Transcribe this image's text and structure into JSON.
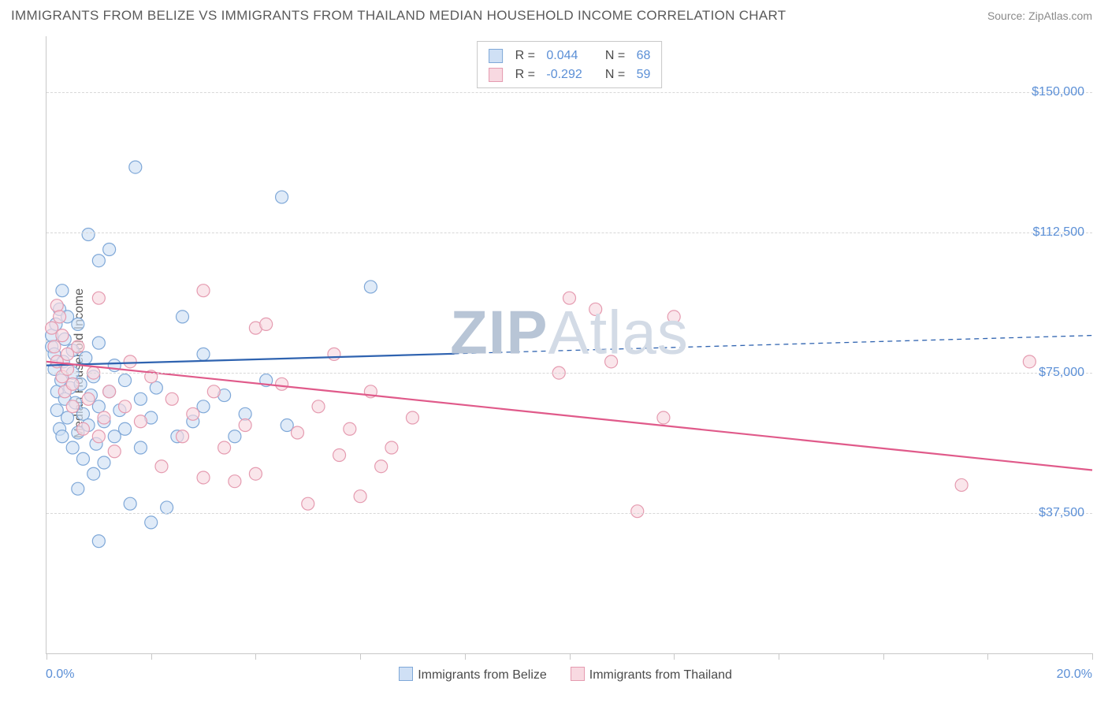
{
  "title": "IMMIGRANTS FROM BELIZE VS IMMIGRANTS FROM THAILAND MEDIAN HOUSEHOLD INCOME CORRELATION CHART",
  "source": "Source: ZipAtlas.com",
  "y_axis_label": "Median Household Income",
  "watermark": {
    "text_bold": "ZIP",
    "text_light": "Atlas",
    "color_bold": "#b8c5d6",
    "color_light": "#d3dbe6"
  },
  "chart": {
    "type": "scatter",
    "xlim": [
      0,
      20
    ],
    "ylim": [
      0,
      165000
    ],
    "x_tick_positions": [
      0,
      2,
      4,
      6,
      8,
      10,
      12,
      14,
      16,
      18,
      20
    ],
    "x_tick_labels": {
      "min": "0.0%",
      "max": "20.0%"
    },
    "y_ticks": [
      {
        "value": 37500,
        "label": "$37,500"
      },
      {
        "value": 75000,
        "label": "$75,000"
      },
      {
        "value": 112500,
        "label": "$112,500"
      },
      {
        "value": 150000,
        "label": "$150,000"
      }
    ],
    "grid_color": "#d8d8d8",
    "axis_color": "#c8c8c8",
    "background": "#ffffff",
    "marker_radius": 8,
    "marker_stroke_width": 1.2,
    "line_width": 2.2,
    "dash_pattern": "6 5",
    "series": [
      {
        "id": "belize",
        "label": "Immigrants from Belize",
        "fill_color": "#cfe0f5",
        "stroke_color": "#7fa8d8",
        "line_color": "#2f63b0",
        "r_value": "0.044",
        "n_value": "68",
        "trend": {
          "x1": 0,
          "y1": 77000,
          "x2": 20,
          "y2": 85000,
          "solid_until_x": 7.8
        },
        "points": [
          [
            0.1,
            82000
          ],
          [
            0.1,
            85000
          ],
          [
            0.15,
            80000
          ],
          [
            0.15,
            76000
          ],
          [
            0.18,
            88000
          ],
          [
            0.2,
            65000
          ],
          [
            0.2,
            70000
          ],
          [
            0.25,
            60000
          ],
          [
            0.25,
            92000
          ],
          [
            0.28,
            73000
          ],
          [
            0.3,
            97000
          ],
          [
            0.3,
            58000
          ],
          [
            0.32,
            78000
          ],
          [
            0.35,
            84000
          ],
          [
            0.35,
            68000
          ],
          [
            0.4,
            63000
          ],
          [
            0.4,
            90000
          ],
          [
            0.45,
            71000
          ],
          [
            0.5,
            55000
          ],
          [
            0.5,
            81000
          ],
          [
            0.5,
            75000
          ],
          [
            0.55,
            67000
          ],
          [
            0.6,
            59000
          ],
          [
            0.6,
            88000
          ],
          [
            0.65,
            72000
          ],
          [
            0.7,
            64000
          ],
          [
            0.7,
            52000
          ],
          [
            0.75,
            79000
          ],
          [
            0.8,
            61000
          ],
          [
            0.8,
            112000
          ],
          [
            0.85,
            69000
          ],
          [
            0.9,
            48000
          ],
          [
            0.9,
            74000
          ],
          [
            0.95,
            56000
          ],
          [
            1.0,
            83000
          ],
          [
            1.0,
            66000
          ],
          [
            1.0,
            105000
          ],
          [
            1.1,
            62000
          ],
          [
            1.1,
            51000
          ],
          [
            1.2,
            70000
          ],
          [
            1.2,
            108000
          ],
          [
            1.3,
            58000
          ],
          [
            1.3,
            77000
          ],
          [
            1.4,
            65000
          ],
          [
            1.5,
            60000
          ],
          [
            1.5,
            73000
          ],
          [
            1.6,
            40000
          ],
          [
            1.7,
            130000
          ],
          [
            1.8,
            55000
          ],
          [
            1.8,
            68000
          ],
          [
            2.0,
            63000
          ],
          [
            2.0,
            35000
          ],
          [
            2.1,
            71000
          ],
          [
            2.3,
            39000
          ],
          [
            2.5,
            58000
          ],
          [
            2.6,
            90000
          ],
          [
            2.8,
            62000
          ],
          [
            3.0,
            66000
          ],
          [
            3.0,
            80000
          ],
          [
            3.4,
            69000
          ],
          [
            3.6,
            58000
          ],
          [
            3.8,
            64000
          ],
          [
            4.2,
            73000
          ],
          [
            4.5,
            122000
          ],
          [
            4.6,
            61000
          ],
          [
            6.2,
            98000
          ],
          [
            1.0,
            30000
          ],
          [
            0.6,
            44000
          ]
        ]
      },
      {
        "id": "thailand",
        "label": "Immigrants from Thailand",
        "fill_color": "#f8d9e1",
        "stroke_color": "#e59bb0",
        "line_color": "#e05a8a",
        "r_value": "-0.292",
        "n_value": "59",
        "trend": {
          "x1": 0,
          "y1": 78000,
          "x2": 20,
          "y2": 49000,
          "solid_until_x": 20
        },
        "points": [
          [
            0.1,
            87000
          ],
          [
            0.15,
            82000
          ],
          [
            0.2,
            93000
          ],
          [
            0.2,
            78000
          ],
          [
            0.25,
            90000
          ],
          [
            0.3,
            74000
          ],
          [
            0.3,
            85000
          ],
          [
            0.35,
            70000
          ],
          [
            0.4,
            80000
          ],
          [
            0.4,
            76000
          ],
          [
            0.5,
            66000
          ],
          [
            0.5,
            72000
          ],
          [
            0.6,
            82000
          ],
          [
            0.7,
            60000
          ],
          [
            0.8,
            68000
          ],
          [
            0.9,
            75000
          ],
          [
            1.0,
            58000
          ],
          [
            1.1,
            63000
          ],
          [
            1.2,
            70000
          ],
          [
            1.3,
            54000
          ],
          [
            1.5,
            66000
          ],
          [
            1.6,
            78000
          ],
          [
            1.8,
            62000
          ],
          [
            2.0,
            74000
          ],
          [
            2.2,
            50000
          ],
          [
            2.4,
            68000
          ],
          [
            2.6,
            58000
          ],
          [
            2.8,
            64000
          ],
          [
            3.0,
            97000
          ],
          [
            3.2,
            70000
          ],
          [
            3.4,
            55000
          ],
          [
            3.6,
            46000
          ],
          [
            3.8,
            61000
          ],
          [
            4.0,
            87000
          ],
          [
            4.2,
            88000
          ],
          [
            4.5,
            72000
          ],
          [
            4.8,
            59000
          ],
          [
            5.0,
            40000
          ],
          [
            5.2,
            66000
          ],
          [
            5.5,
            80000
          ],
          [
            5.6,
            53000
          ],
          [
            5.8,
            60000
          ],
          [
            6.0,
            42000
          ],
          [
            6.2,
            70000
          ],
          [
            6.4,
            50000
          ],
          [
            6.6,
            55000
          ],
          [
            7.0,
            63000
          ],
          [
            9.8,
            75000
          ],
          [
            10.0,
            95000
          ],
          [
            10.5,
            92000
          ],
          [
            10.8,
            78000
          ],
          [
            11.3,
            38000
          ],
          [
            11.8,
            63000
          ],
          [
            12.0,
            90000
          ],
          [
            17.5,
            45000
          ],
          [
            18.8,
            78000
          ],
          [
            3.0,
            47000
          ],
          [
            4.0,
            48000
          ],
          [
            1.0,
            95000
          ]
        ]
      }
    ],
    "bottom_legend": [
      {
        "series": "belize"
      },
      {
        "series": "thailand"
      }
    ],
    "stat_box": {
      "r_prefix": "R =",
      "n_prefix": "N ="
    }
  }
}
